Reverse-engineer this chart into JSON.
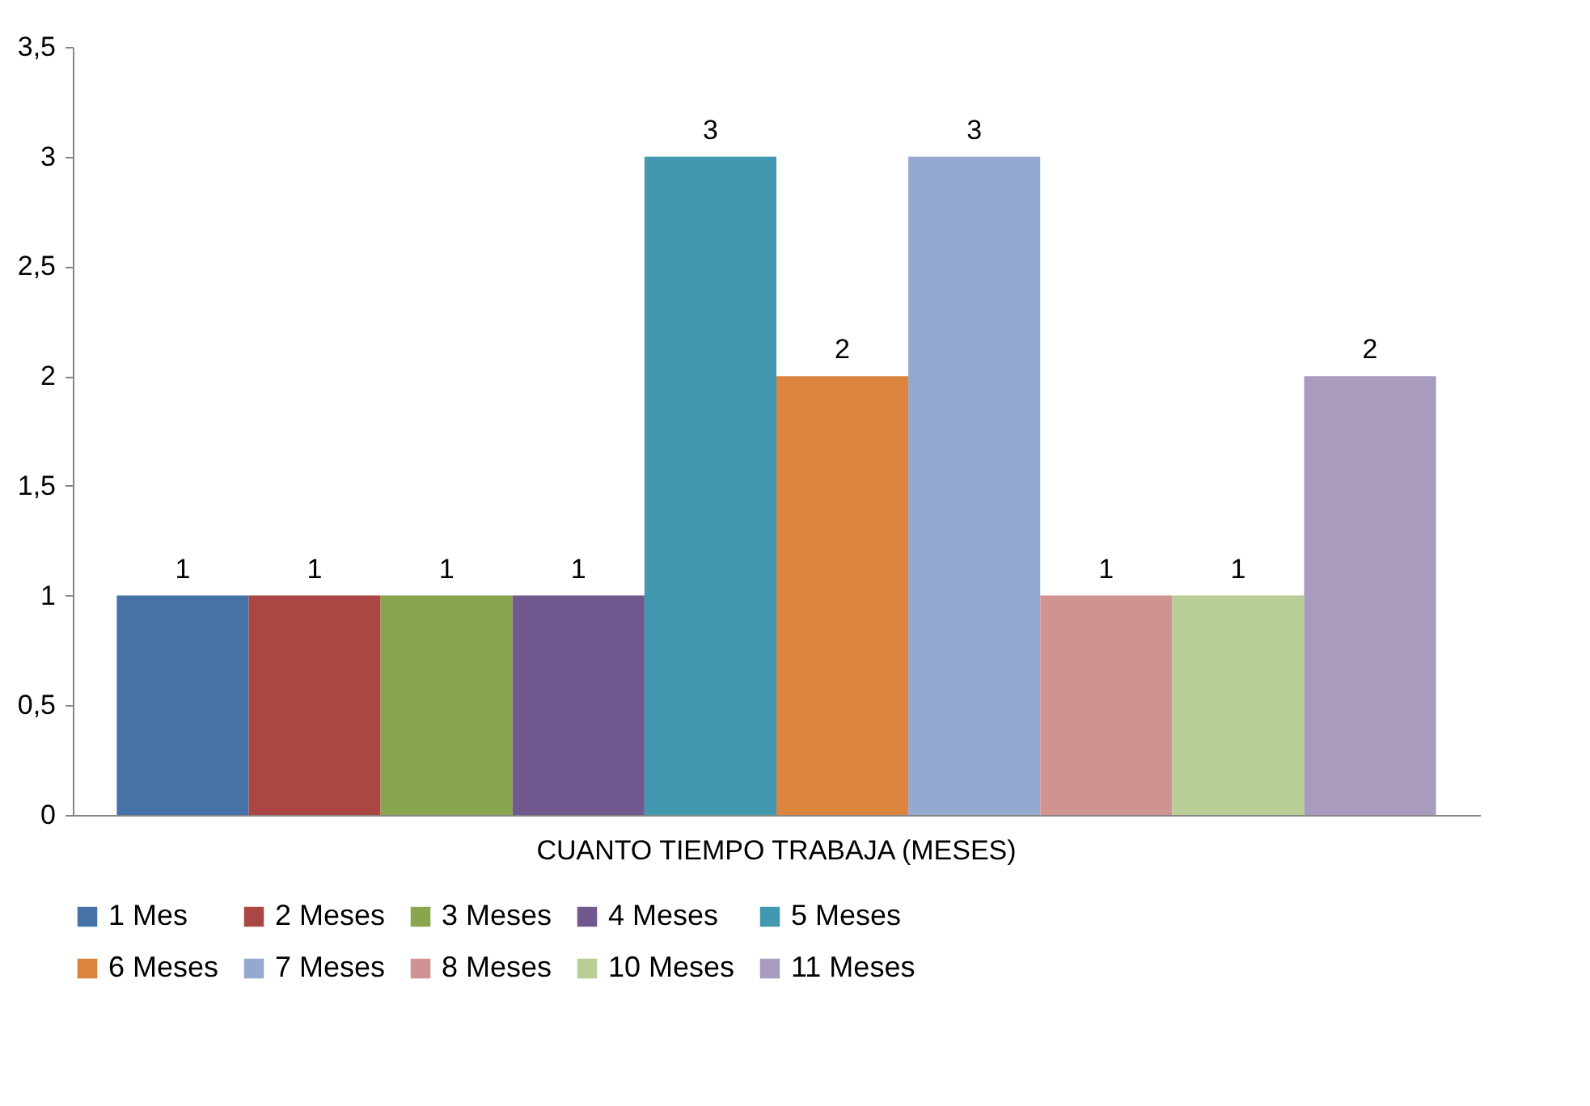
{
  "chart_data": {
    "type": "bar",
    "categories": [
      "CUANTO TIEMPO TRABAJA (MESES)"
    ],
    "series": [
      {
        "name": "1 Mes",
        "color": "#4572a7",
        "values": [
          1
        ]
      },
      {
        "name": "2 Meses",
        "color": "#aa4643",
        "values": [
          1
        ]
      },
      {
        "name": "3 Meses",
        "color": "#89a54e",
        "values": [
          1
        ]
      },
      {
        "name": "4 Meses",
        "color": "#71588f",
        "values": [
          1
        ]
      },
      {
        "name": "5 Meses",
        "color": "#4198af",
        "values": [
          3
        ]
      },
      {
        "name": "6 Meses",
        "color": "#db843d",
        "values": [
          2
        ]
      },
      {
        "name": "7 Meses",
        "color": "#93a9cf",
        "values": [
          3
        ]
      },
      {
        "name": "8 Meses",
        "color": "#d19392",
        "values": [
          1
        ]
      },
      {
        "name": "10 Meses",
        "color": "#b9cd96",
        "values": [
          1
        ]
      },
      {
        "name": "11 Meses",
        "color": "#a99bbd",
        "values": [
          2
        ]
      }
    ],
    "ylim": [
      0,
      3.5
    ],
    "yticks": [
      0,
      {
        "value": 0.5,
        "label": "0,5"
      },
      1,
      {
        "value": 1.5,
        "label": "1,5"
      },
      2,
      {
        "value": 2.5,
        "label": "2,5"
      },
      3,
      {
        "value": 3.5,
        "label": "3,5"
      }
    ],
    "data_labels": true,
    "grid": false,
    "legend": "bottom"
  }
}
